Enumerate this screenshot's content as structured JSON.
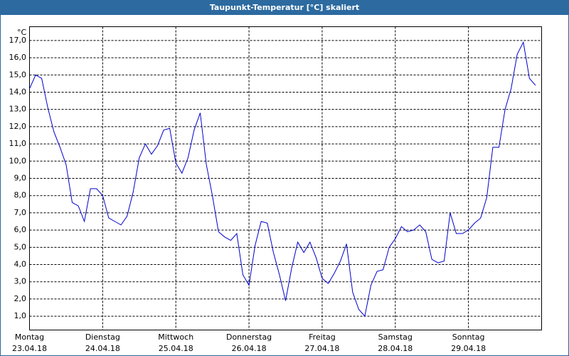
{
  "window_title": "Taupunkt-Temperatur [°C] skaliert",
  "chart_data": {
    "type": "line",
    "y_unit": "°C",
    "series": [
      {
        "color": "#0000cc",
        "values": [
          14.2,
          15.0,
          14.8,
          13.1,
          11.7,
          10.8,
          9.8,
          7.6,
          7.4,
          6.5,
          8.4,
          8.4,
          8.0,
          6.7,
          6.5,
          6.3,
          6.8,
          8.2,
          10.2,
          11.0,
          10.4,
          10.9,
          11.8,
          11.9,
          9.9,
          9.3,
          10.2,
          11.8,
          12.8,
          9.8,
          8.0,
          5.9,
          5.6,
          5.4,
          5.8,
          3.4,
          2.8,
          5.1,
          6.5,
          6.4,
          4.7,
          3.4,
          1.9,
          3.8,
          5.3,
          4.7,
          5.3,
          4.4,
          3.2,
          2.9,
          3.5,
          4.2,
          5.2,
          2.4,
          1.4,
          1.0,
          2.8,
          3.6,
          3.7,
          5.0,
          5.5,
          6.2,
          5.9,
          6.0,
          6.3,
          5.9,
          4.3,
          4.1,
          4.2,
          7.0,
          5.8,
          5.8,
          6.0,
          6.4,
          6.7,
          7.9,
          10.8,
          10.8,
          13.0,
          14.2,
          16.2,
          16.9,
          14.8,
          14.4
        ]
      }
    ],
    "xlim": [
      0,
      84
    ],
    "xticks": [
      {
        "value": 0,
        "label": "Montag",
        "date": "23.04.18"
      },
      {
        "value": 12,
        "label": "Dienstag",
        "date": "24.04.18"
      },
      {
        "value": 24,
        "label": "Mittwoch",
        "date": "25.04.18"
      },
      {
        "value": 36,
        "label": "Donnerstag",
        "date": "26.04.18"
      },
      {
        "value": 48,
        "label": "Freitag",
        "date": "27.04.18"
      },
      {
        "value": 60,
        "label": "Samstag",
        "date": "28.04.18"
      },
      {
        "value": 72,
        "label": "Sonntag",
        "date": "29.04.18"
      }
    ],
    "ylim": [
      0.2,
      17.8
    ],
    "yticks": [
      {
        "value": 1,
        "label": "1,0"
      },
      {
        "value": 2,
        "label": "2,0"
      },
      {
        "value": 3,
        "label": "3,0"
      },
      {
        "value": 4,
        "label": "4,0"
      },
      {
        "value": 5,
        "label": "5,0"
      },
      {
        "value": 6,
        "label": "6,0"
      },
      {
        "value": 7,
        "label": "7,0"
      },
      {
        "value": 8,
        "label": "8,0"
      },
      {
        "value": 9,
        "label": "9,0"
      },
      {
        "value": 10,
        "label": "10,0"
      },
      {
        "value": 11,
        "label": "11,0"
      },
      {
        "value": 12,
        "label": "12,0"
      },
      {
        "value": 13,
        "label": "13,0"
      },
      {
        "value": 14,
        "label": "14,0"
      },
      {
        "value": 15,
        "label": "15,0"
      },
      {
        "value": 16,
        "label": "16,0"
      },
      {
        "value": 17,
        "label": "17,0"
      }
    ],
    "grid": true
  }
}
